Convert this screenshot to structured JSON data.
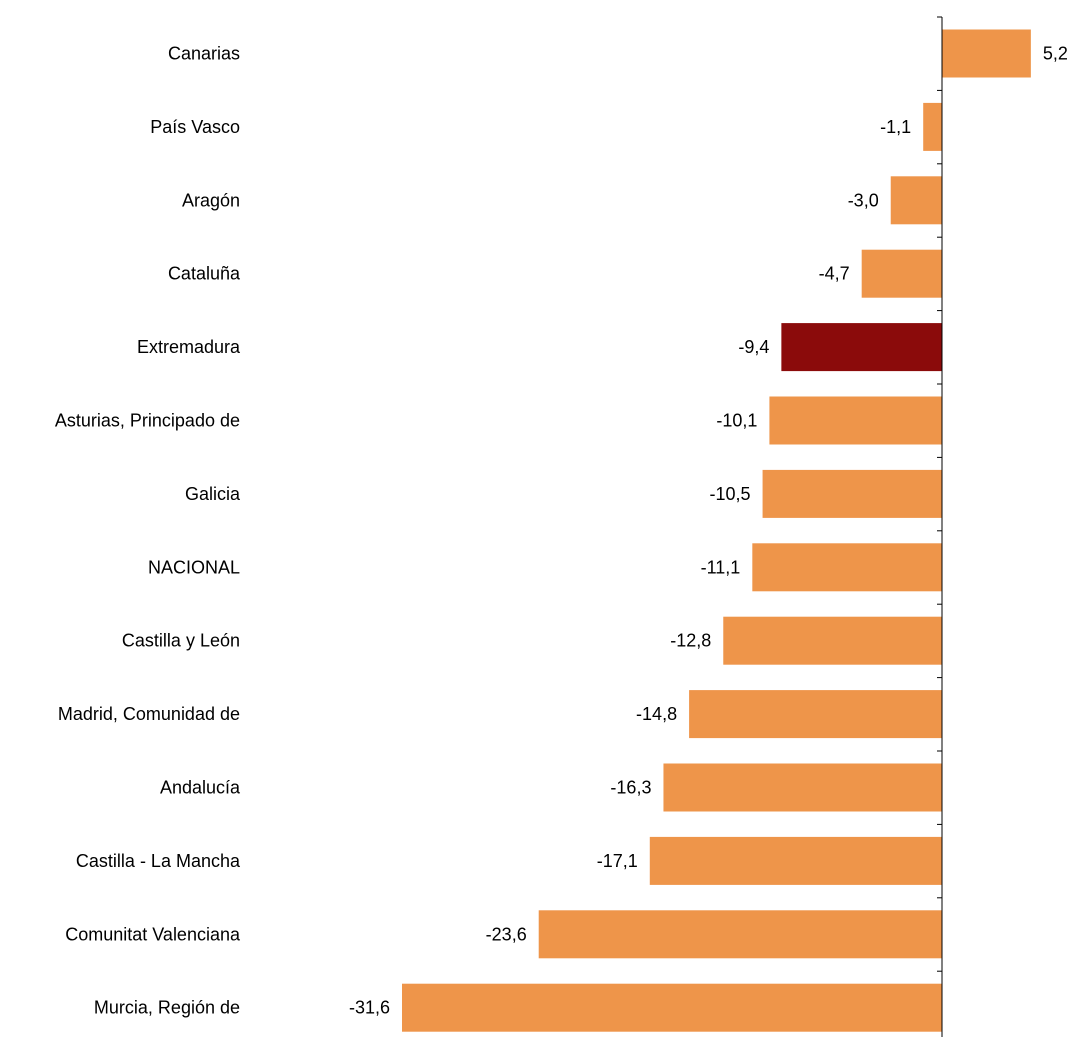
{
  "chart_data": {
    "type": "bar",
    "orientation": "horizontal",
    "categories": [
      "Canarias",
      "País Vasco",
      "Aragón",
      "Cataluña",
      "Extremadura",
      "Asturias, Principado de",
      "Galicia",
      "NACIONAL",
      "Castilla y León",
      "Madrid, Comunidad de",
      "Andalucía",
      "Castilla - La Mancha",
      "Comunitat Valenciana",
      "Murcia, Región de"
    ],
    "values": [
      5.2,
      -1.1,
      -3.0,
      -4.7,
      -9.4,
      -10.1,
      -10.5,
      -11.1,
      -12.8,
      -14.8,
      -16.3,
      -17.1,
      -23.6,
      -31.6
    ],
    "value_labels": [
      "5,2",
      "-1,1",
      "-3,0",
      "-4,7",
      "-9,4",
      "-10,1",
      "-10,5",
      "-11,1",
      "-12,8",
      "-14,8",
      "-16,3",
      "-17,1",
      "-23,6",
      "-31,6"
    ],
    "highlight": "Extremadura",
    "colors": {
      "default": "#EE954A",
      "highlight": "#8B0B0B",
      "axis": "#000000"
    },
    "xlim": [
      -31.6,
      5.2
    ],
    "grid": false,
    "legend": "none",
    "title": "",
    "xlabel": "",
    "ylabel": ""
  }
}
